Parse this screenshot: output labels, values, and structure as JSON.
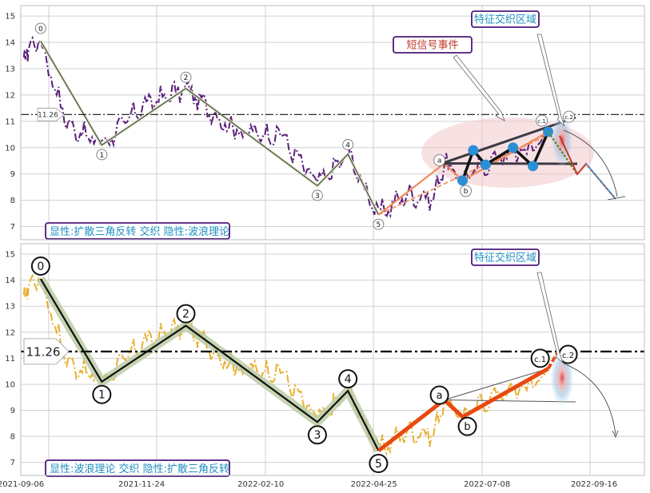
{
  "chart_data": [
    {
      "type": "line",
      "panel": "top",
      "ylim": [
        6.5,
        15.4
      ],
      "yticks": [
        7,
        8,
        9,
        10,
        11,
        12,
        13,
        14,
        15
      ],
      "xtick_labels": [],
      "hline": {
        "value": 11.26,
        "label": "11.26"
      },
      "legend_box": "显性:扩散三角反转 交织 隐性:波浪理论",
      "annotations": [
        {
          "text": "短信号事件"
        },
        {
          "text": "特征交织区域"
        }
      ],
      "wave_points": [
        {
          "label": "0",
          "date": "2021-09-19",
          "value": 14.05
        },
        {
          "label": "1",
          "date": "2021-10-29",
          "value": 10.1
        },
        {
          "label": "2",
          "date": "2021-12-23",
          "value": 12.25
        },
        {
          "label": "3",
          "date": "2022-03-19",
          "value": 8.55
        },
        {
          "label": "4",
          "date": "2022-04-08",
          "value": 9.75
        },
        {
          "label": "5",
          "date": "2022-04-28",
          "value": 7.45
        }
      ],
      "pattern_points": [
        {
          "label": "a",
          "date": "2022-06-10",
          "value": 9.4
        },
        {
          "label": "b",
          "date": "2022-06-22",
          "value": 8.75
        },
        {
          "label": "c.1",
          "date": "2022-08-17",
          "value": 10.6
        },
        {
          "label": "c.2",
          "date": "2022-08-29",
          "value": 10.75
        }
      ],
      "triangle_markers": [
        {
          "date": "2022-06-22",
          "value": 8.75
        },
        {
          "date": "2022-06-29",
          "value": 9.9
        },
        {
          "date": "2022-07-07",
          "value": 9.35
        },
        {
          "date": "2022-07-25",
          "value": 10.0
        },
        {
          "date": "2022-08-07",
          "value": 9.3
        },
        {
          "date": "2022-08-17",
          "value": 10.6
        }
      ]
    },
    {
      "type": "line",
      "panel": "bottom",
      "ylim": [
        6.5,
        15.4
      ],
      "yticks": [
        7,
        8,
        9,
        10,
        11,
        12,
        13,
        14,
        15
      ],
      "xtick_labels": [
        "2021-09-06",
        "2021-11-24",
        "2022-02-10",
        "2022-04-25",
        "2022-07-08",
        "2022-09-16"
      ],
      "hline": {
        "value": 11.26,
        "label": "11.26"
      },
      "legend_box": "显性:波浪理论 交织 隐性:扩散三角反转",
      "annotations": [
        {
          "text": "特征交织区域"
        }
      ],
      "wave_points": [
        {
          "label": "0",
          "date": "2021-09-19",
          "value": 14.05
        },
        {
          "label": "1",
          "date": "2021-10-29",
          "value": 10.1
        },
        {
          "label": "2",
          "date": "2021-12-23",
          "value": 12.25
        },
        {
          "label": "3",
          "date": "2022-03-19",
          "value": 8.55
        },
        {
          "label": "4",
          "date": "2022-04-08",
          "value": 9.75
        },
        {
          "label": "5",
          "date": "2022-04-28",
          "value": 7.45
        }
      ],
      "pattern_points": [
        {
          "label": "a",
          "date": "2022-06-10",
          "value": 9.4
        },
        {
          "label": "b",
          "date": "2022-06-22",
          "value": 8.75
        },
        {
          "label": "c.1",
          "date": "2022-08-17",
          "value": 10.6
        },
        {
          "label": "c.2",
          "date": "2022-08-29",
          "value": 10.75
        }
      ]
    }
  ],
  "colors": {
    "price_top": "#5b1f7a",
    "price_bottom": "#e8b030",
    "wave_line": "#1a1a1a",
    "wave_glow": "#b8c9a0",
    "pattern_orange": "#e8490f",
    "triangle_dark": "#3a3a44",
    "marker_blue": "#2a8fd6",
    "box_border": "#4b1a7a",
    "box_text": "#1f8fc0",
    "annot_red": "#c0392b"
  }
}
